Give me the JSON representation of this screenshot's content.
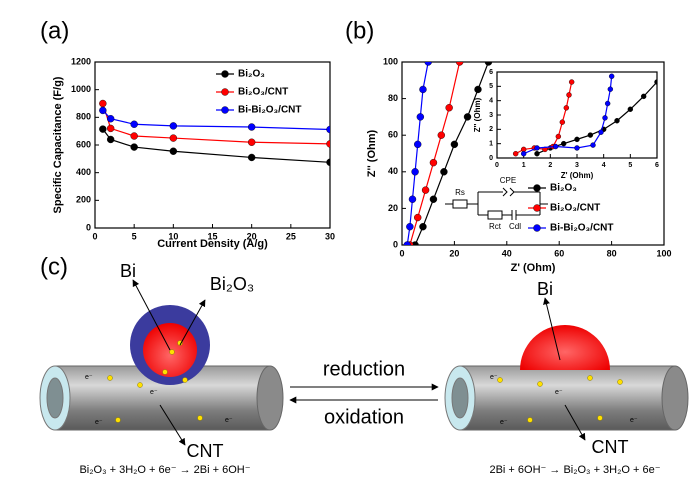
{
  "panels": [
    "(a)",
    "(b)",
    "(c)"
  ],
  "chart_data": [
    {
      "type": "line",
      "x_label": "Current Density (A/g)",
      "y_label": "Specific Capacitance (F/g)",
      "xlim": [
        0,
        30
      ],
      "xticks": [
        0,
        5,
        10,
        15,
        20,
        25,
        30
      ],
      "ylim": [
        0,
        1200
      ],
      "yticks": [
        0,
        200,
        400,
        600,
        800,
        1000,
        1200
      ],
      "x": [
        1,
        2,
        5,
        10,
        20,
        30
      ],
      "series": [
        {
          "name": "Bi₂O₃",
          "color": "#000000",
          "values": [
            715,
            640,
            585,
            555,
            510,
            475
          ]
        },
        {
          "name": "Bi₂O₃/CNT",
          "color": "#ff0000",
          "values": [
            900,
            720,
            665,
            650,
            620,
            608
          ]
        },
        {
          "name": "Bi-Bi₂O₃/CNT",
          "color": "#0000ff",
          "values": [
            850,
            790,
            750,
            738,
            730,
            712
          ]
        }
      ],
      "legend": "upper right"
    },
    {
      "type": "scatter",
      "x_label": "Z' (Ohm)",
      "y_label": "Z'' (Ohm)",
      "xlim": [
        0,
        100
      ],
      "xticks": [
        0,
        20,
        40,
        60,
        80,
        100
      ],
      "ylim": [
        0,
        100
      ],
      "yticks": [
        0,
        20,
        40,
        60,
        80,
        100
      ],
      "series": [
        {
          "name": "Bi₂O₃",
          "color": "#000000",
          "x": [
            5,
            8,
            12,
            16,
            20,
            25,
            29,
            33
          ],
          "values": [
            0,
            10,
            25,
            40,
            55,
            70,
            85,
            100
          ]
        },
        {
          "name": "Bi₂O₃/CNT",
          "color": "#ff0000",
          "x": [
            3,
            6,
            9,
            12,
            15,
            18,
            22
          ],
          "values": [
            0,
            15,
            30,
            45,
            60,
            75,
            100
          ]
        },
        {
          "name": "Bi-Bi₂O₃/CNT",
          "color": "#0000ff",
          "x": [
            2,
            3,
            4,
            5,
            6,
            7,
            8,
            10
          ],
          "values": [
            0,
            10,
            25,
            40,
            55,
            70,
            85,
            100
          ]
        }
      ],
      "legend": "lower right"
    },
    {
      "type": "scatter",
      "x_label": "Z' (Ohm)",
      "y_label": "Z'' (Ohm)",
      "xlim": [
        0,
        6
      ],
      "xticks": [
        0,
        1,
        2,
        3,
        4,
        5,
        6
      ],
      "ylim": [
        0,
        6
      ],
      "yticks": [
        0,
        1,
        2,
        3,
        4,
        5,
        6
      ],
      "series": [
        {
          "color": "#000000",
          "x": [
            1.5,
            2,
            2.5,
            3,
            3.5,
            4,
            4.5,
            5,
            5.5,
            6
          ],
          "values": [
            0.3,
            0.7,
            1.0,
            1.3,
            1.6,
            2.0,
            2.6,
            3.4,
            4.3,
            5.3
          ]
        },
        {
          "color": "#ff0000",
          "x": [
            0.7,
            1.0,
            1.4,
            1.8,
            2.1,
            2.3,
            2.45,
            2.6,
            2.7,
            2.8
          ],
          "values": [
            0.3,
            0.6,
            0.7,
            0.6,
            0.8,
            1.5,
            2.5,
            3.5,
            4.4,
            5.3
          ]
        },
        {
          "color": "#0000ff",
          "x": [
            1.0,
            1.5,
            2.2,
            3.0,
            3.6,
            3.9,
            4.05,
            4.15,
            4.25,
            4.3
          ],
          "values": [
            0.3,
            0.7,
            0.8,
            0.7,
            0.9,
            1.8,
            2.8,
            3.8,
            4.8,
            5.7
          ]
        }
      ]
    }
  ],
  "circuit": {
    "rs": "Rs",
    "cpe": "CPE",
    "rct": "Rct",
    "cdl": "Cdl"
  },
  "diagram": {
    "bi_left": "Bi",
    "bi2o3": "Bi₂O₃",
    "cnt_left": "CNT",
    "reduction": "reduction",
    "oxidation": "oxidation",
    "bi_right": "Bi",
    "cnt_right": "CNT",
    "electron": "e⁻",
    "equation_left": "Bi₂O₃ + 3H₂O + 6e⁻ → 2Bi + 6OH⁻",
    "equation_right": "2Bi + 6OH⁻ → Bi₂O₃ + 3H₂O + 6e⁻"
  }
}
